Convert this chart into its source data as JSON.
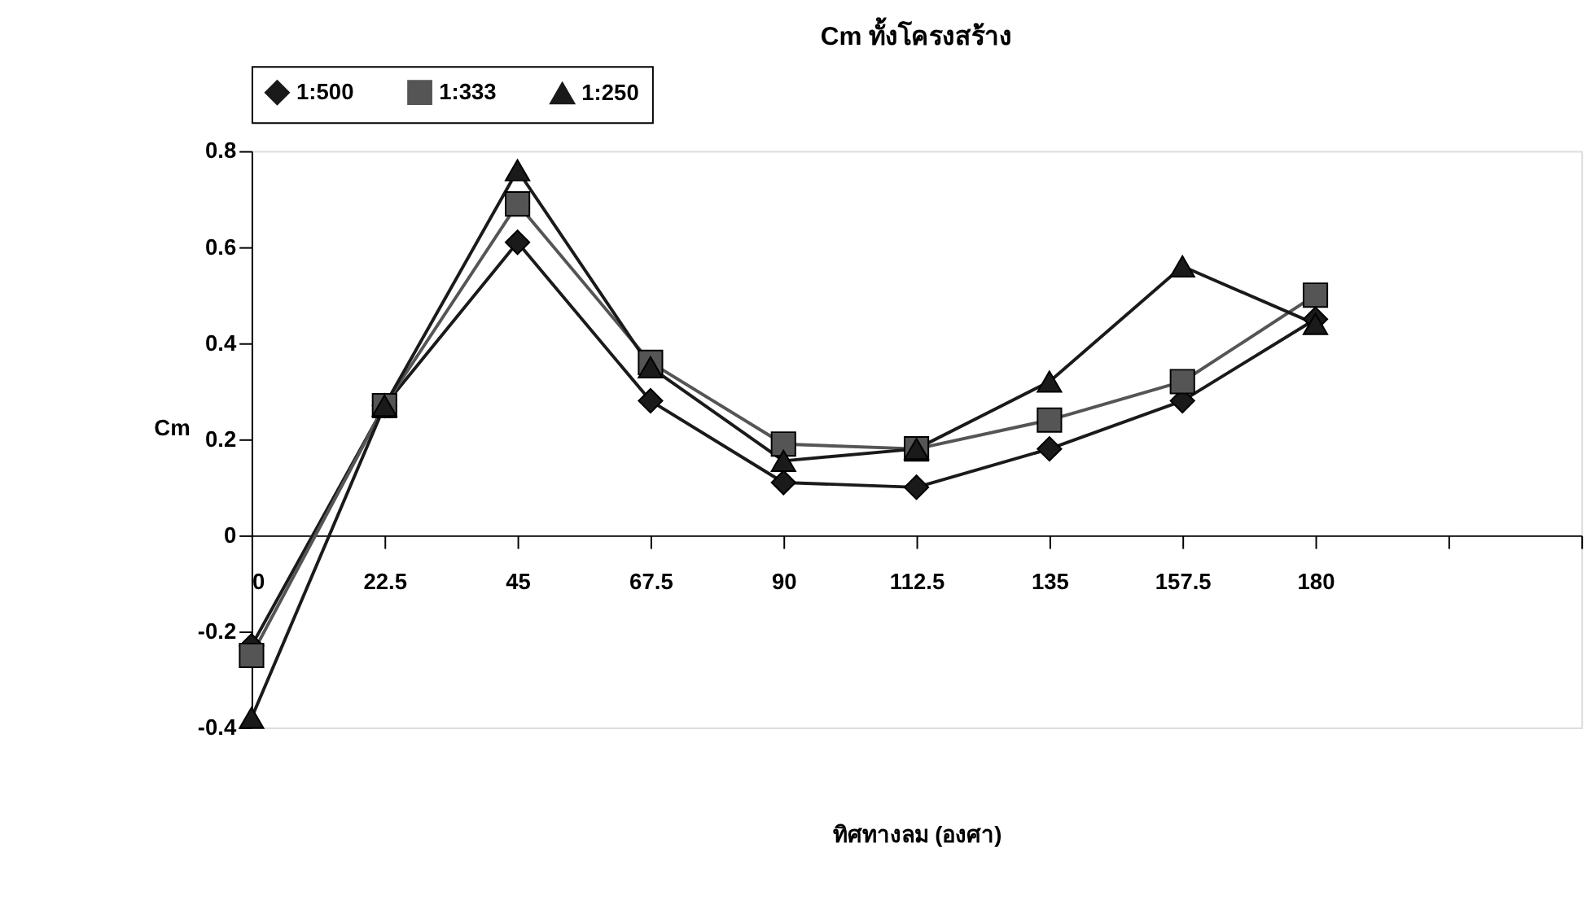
{
  "chart_data": {
    "type": "line",
    "title": "Cm ทั้งโครงสร้าง",
    "xlabel": "ทิศทางลม (องศา)",
    "ylabel": "Cm",
    "x": [
      0,
      22.5,
      45,
      67.5,
      90,
      112.5,
      135,
      157.5,
      180
    ],
    "series": [
      {
        "name": "1:500",
        "color": "#1a1a1a",
        "marker": "diamond",
        "values": [
          -0.23,
          0.27,
          0.61,
          0.28,
          0.11,
          0.1,
          0.18,
          0.28,
          0.45
        ]
      },
      {
        "name": "1:333",
        "color": "#555555",
        "marker": "square",
        "values": [
          -0.25,
          0.27,
          0.69,
          0.36,
          0.19,
          0.18,
          0.24,
          0.32,
          0.5
        ]
      },
      {
        "name": "1:250",
        "color": "#1a1a1a",
        "marker": "triangle",
        "values": [
          -0.38,
          0.27,
          0.76,
          0.35,
          0.155,
          0.18,
          0.32,
          0.56,
          0.44
        ]
      }
    ],
    "xlim": [
      0,
      225
    ],
    "xticks": [
      0,
      22.5,
      45,
      67.5,
      90,
      112.5,
      135,
      157.5,
      180,
      {
        "value": 202.5,
        "label": null
      },
      {
        "value": 225,
        "label": null
      }
    ],
    "ylim": [
      -0.4,
      0.8
    ],
    "yticks": [
      -0.4,
      -0.2,
      0,
      0.2,
      0.4,
      0.6,
      0.8
    ],
    "grid": false,
    "legend": "top",
    "line_style": "solid"
  }
}
